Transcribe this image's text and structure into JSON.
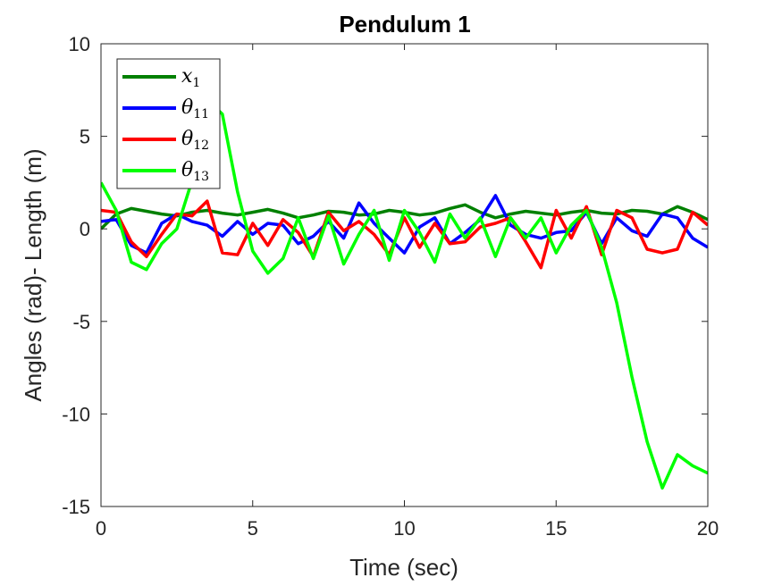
{
  "chart_data": {
    "type": "line",
    "title": "Pendulum 1",
    "xlabel": "Time (sec)",
    "ylabel": "Angles (rad)- Length (m)",
    "xlim": [
      0,
      20
    ],
    "ylim": [
      -15,
      10
    ],
    "xticks": [
      0,
      5,
      10,
      15,
      20
    ],
    "yticks": [
      -15,
      -10,
      -5,
      0,
      5,
      10
    ],
    "grid": false,
    "legend_position": "top-left",
    "series": [
      {
        "name": "x1",
        "legend_base": "x",
        "legend_sub": "1",
        "color": "#008000",
        "x": [
          0,
          0.5,
          1,
          1.5,
          2,
          2.5,
          3,
          3.5,
          4,
          4.5,
          5,
          5.5,
          6,
          6.5,
          7,
          7.5,
          8,
          8.5,
          9,
          9.5,
          10,
          10.5,
          11,
          11.5,
          12,
          12.5,
          13,
          13.5,
          14,
          14.5,
          15,
          15.5,
          16,
          16.5,
          17,
          17.5,
          18,
          18.5,
          19,
          19.5,
          20
        ],
        "y": [
          0,
          0.8,
          1.1,
          0.95,
          0.8,
          0.7,
          0.9,
          1.0,
          0.85,
          0.75,
          0.9,
          1.05,
          0.85,
          0.6,
          0.75,
          0.95,
          0.9,
          0.75,
          0.8,
          1.0,
          0.9,
          0.75,
          0.85,
          1.1,
          1.3,
          0.9,
          0.6,
          0.8,
          0.95,
          0.85,
          0.75,
          0.9,
          1.0,
          0.85,
          0.8,
          1.0,
          0.95,
          0.8,
          1.2,
          0.9,
          0.5
        ]
      },
      {
        "name": "θ11",
        "legend_base": "θ",
        "legend_sub": "11",
        "color": "#0000ff",
        "x": [
          0,
          0.5,
          1,
          1.5,
          2,
          2.5,
          3,
          3.5,
          4,
          4.5,
          5,
          5.5,
          6,
          6.5,
          7,
          7.5,
          8,
          8.5,
          9,
          9.5,
          10,
          10.5,
          11,
          11.5,
          12,
          12.5,
          13,
          13.5,
          14,
          14.5,
          15,
          15.5,
          16,
          16.5,
          17,
          17.5,
          18,
          18.5,
          19,
          19.5,
          20
        ],
        "y": [
          0.4,
          0.5,
          -0.9,
          -1.3,
          0.3,
          0.8,
          0.4,
          0.2,
          -0.4,
          0.4,
          -0.3,
          0.3,
          0.2,
          -0.8,
          -0.4,
          0.4,
          -0.5,
          1.4,
          0.3,
          -0.5,
          -1.3,
          0.1,
          0.6,
          -0.8,
          -0.2,
          0.5,
          1.8,
          0.2,
          -0.3,
          -0.5,
          -0.2,
          -0.1,
          0.9,
          -0.8,
          0.6,
          -0.1,
          -0.4,
          0.8,
          0.6,
          -0.5,
          -1.0
        ]
      },
      {
        "name": "θ12",
        "legend_base": "θ",
        "legend_sub": "12",
        "color": "#ff0000",
        "x": [
          0,
          0.5,
          1,
          1.5,
          2,
          2.5,
          3,
          3.5,
          4,
          4.5,
          5,
          5.5,
          6,
          6.5,
          7,
          7.5,
          8,
          8.5,
          9,
          9.5,
          10,
          10.5,
          11,
          11.5,
          12,
          12.5,
          13,
          13.5,
          14,
          14.5,
          15,
          15.5,
          16,
          16.5,
          17,
          17.5,
          18,
          18.5,
          19,
          19.5,
          20
        ],
        "y": [
          1.0,
          0.9,
          -0.7,
          -1.5,
          -0.3,
          0.8,
          0.7,
          1.5,
          -1.3,
          -1.4,
          0.3,
          -0.9,
          0.5,
          -0.2,
          -1.5,
          0.9,
          -0.1,
          0.4,
          -0.3,
          -1.4,
          0.6,
          -1.0,
          0.3,
          -0.8,
          -0.7,
          0.1,
          0.3,
          0.6,
          -0.7,
          -2.1,
          1.0,
          -0.5,
          1.2,
          -1.4,
          1.0,
          0.6,
          -1.1,
          -1.3,
          -1.1,
          0.9,
          0.2
        ]
      },
      {
        "name": "θ13",
        "legend_base": "θ",
        "legend_sub": "13",
        "color": "#00ff00",
        "x": [
          0,
          0.5,
          1,
          1.5,
          2,
          2.5,
          3,
          3.5,
          4,
          4.5,
          5,
          5.5,
          6,
          6.5,
          7,
          7.5,
          8,
          8.5,
          9,
          9.5,
          10,
          10.5,
          11,
          11.5,
          12,
          12.5,
          13,
          13.5,
          14,
          14.5,
          15,
          15.5,
          16,
          16.5,
          17,
          17.5,
          18,
          18.5,
          19,
          19.5,
          20
        ],
        "y": [
          2.5,
          1.0,
          -1.8,
          -2.2,
          -0.8,
          0.0,
          2.6,
          7.0,
          6.2,
          2.0,
          -1.2,
          -2.4,
          -1.6,
          0.6,
          -1.6,
          0.7,
          -1.9,
          -0.3,
          1.0,
          -1.7,
          1.0,
          -0.2,
          -1.8,
          0.8,
          -0.5,
          0.6,
          -1.5,
          0.6,
          -0.5,
          0.6,
          -1.3,
          0.2,
          1.0,
          -1.0,
          -4.0,
          -8.0,
          -11.5,
          -14.0,
          -12.2,
          -12.8,
          -13.2
        ]
      }
    ]
  }
}
